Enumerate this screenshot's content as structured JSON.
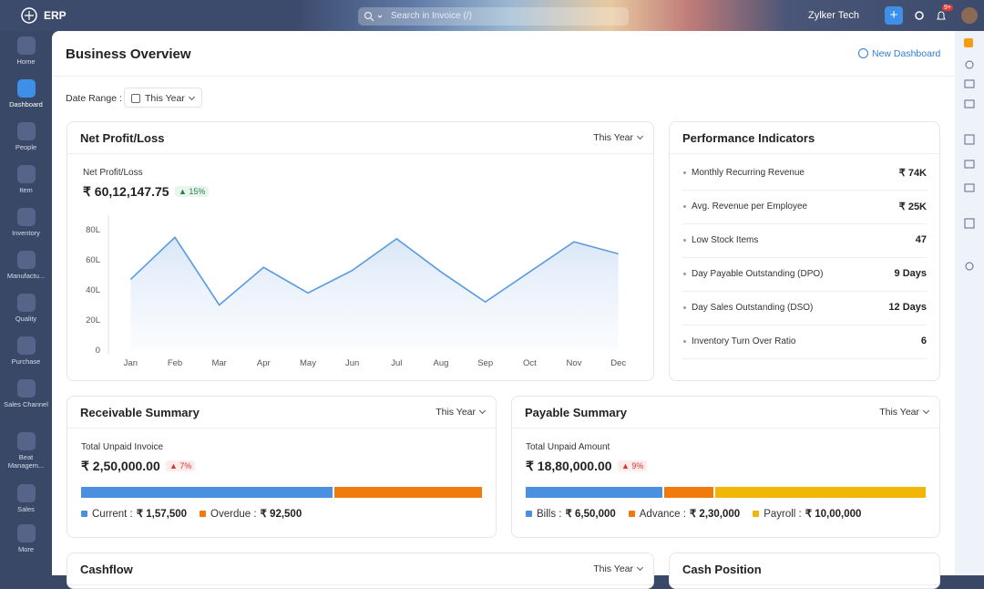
{
  "topbar": {
    "app": "ERP",
    "search_placeholder": "Search in Invoice (/)",
    "org": "Zylker Tech",
    "badge": "9+"
  },
  "sidebar": [
    "Home",
    "Dashboard",
    "People",
    "Item",
    "Inventory",
    "Manufactu...",
    "Quality",
    "Purchase",
    "Sales Channel",
    "Beat Managem...",
    "Sales",
    "More"
  ],
  "header": {
    "title": "Business Overview",
    "new_dashboard": "New Dashboard",
    "date_range_label": "Date Range :",
    "date_range": "This Year"
  },
  "net_profit": {
    "title": "Net Profit/Loss",
    "filter": "This Year",
    "metric_label": "Net Profit/Loss",
    "metric_value": "₹ 60,12,147.75",
    "change": "15%",
    "chart_data": {
      "type": "line",
      "categories": [
        "Jan",
        "Feb",
        "Mar",
        "Apr",
        "May",
        "Jun",
        "Jul",
        "Aug",
        "Sep",
        "Oct",
        "Nov",
        "Dec"
      ],
      "series": [
        {
          "name": "Net Profit/Loss",
          "color": "#5b9be0",
          "values": [
            47,
            75,
            30,
            55,
            38,
            53,
            74,
            52,
            32,
            52,
            72,
            64
          ]
        }
      ],
      "ylim": [
        0,
        80
      ],
      "yticks": [
        {
          "value": 0,
          "label": "0"
        },
        {
          "value": 20,
          "label": "20L"
        },
        {
          "value": 40,
          "label": "40L"
        },
        {
          "value": 60,
          "label": "60L"
        },
        {
          "value": 80,
          "label": "80L"
        }
      ]
    }
  },
  "performance": {
    "title": "Performance Indicators",
    "rows": [
      {
        "name": "Monthly Recurring Revenue",
        "value": "₹ 74K"
      },
      {
        "name": "Avg. Revenue per Employee",
        "value": "₹ 25K"
      },
      {
        "name": "Low Stock Items",
        "value": "47"
      },
      {
        "name": "Day Payable Outstanding (DPO)",
        "value": "9 Days"
      },
      {
        "name": "Day Sales Outstanding (DSO)",
        "value": "12 Days"
      },
      {
        "name": "Inventory Turn Over Ratio",
        "value": "6"
      }
    ]
  },
  "receivable": {
    "title": "Receivable Summary",
    "filter": "This Year",
    "metric_label": "Total Unpaid Invoice",
    "metric_value": "₹ 2,50,000.00",
    "change": "7%",
    "segments": [
      {
        "name": "Current :",
        "value": 157500,
        "value_label": "₹ 1,57,500",
        "color": "#4a8fe0"
      },
      {
        "name": "Overdue :",
        "value": 92500,
        "value_label": "₹ 92,500",
        "color": "#f07a0c"
      }
    ]
  },
  "payable": {
    "title": "Payable Summary",
    "filter": "This Year",
    "metric_label": "Total Unpaid Amount",
    "metric_value": "₹ 18,80,000.00",
    "change": "9%",
    "segments": [
      {
        "name": "Bills :",
        "value": 650000,
        "value_label": "₹ 6,50,000",
        "color": "#4a8fe0"
      },
      {
        "name": "Advance :",
        "value": 230000,
        "value_label": "₹ 2,30,000",
        "color": "#f07a0c"
      },
      {
        "name": "Payroll :",
        "value": 1000000,
        "value_label": "₹ 10,00,000",
        "color": "#f2b705"
      }
    ]
  },
  "cashflow": {
    "title": "Cashflow",
    "filter": "This Year"
  },
  "cash_position": {
    "title": "Cash Position"
  }
}
